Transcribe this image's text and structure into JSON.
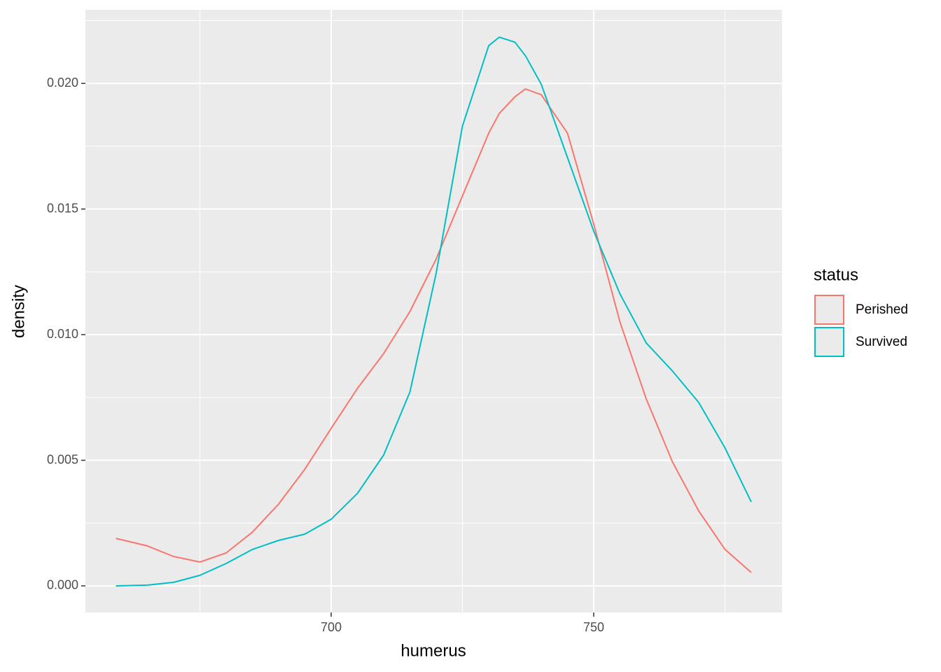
{
  "chart_data": {
    "type": "line",
    "x_label": "humerus",
    "y_label": "density",
    "x": [
      659,
      665,
      670,
      675,
      680,
      685,
      690,
      695,
      700,
      705,
      710,
      715,
      720,
      725,
      730,
      732,
      735,
      737,
      740,
      745,
      750,
      755,
      760,
      765,
      770,
      775,
      780
    ],
    "series": [
      {
        "name": "Perished",
        "color": "#f8766d",
        "values": [
          0.00189,
          0.00159,
          0.00117,
          0.00095,
          0.00131,
          0.00214,
          0.00326,
          0.00465,
          0.00627,
          0.00786,
          0.00925,
          0.01092,
          0.01301,
          0.01552,
          0.01802,
          0.0188,
          0.01947,
          0.01978,
          0.01955,
          0.01802,
          0.0144,
          0.0105,
          0.00744,
          0.00493,
          0.00298,
          0.00145,
          0.00053
        ]
      },
      {
        "name": "Survived",
        "color": "#00bfc4",
        "values": [
          0,
          3e-05,
          0.00014,
          0.00042,
          0.00089,
          0.00145,
          0.00181,
          0.00206,
          0.00265,
          0.00368,
          0.00521,
          0.00772,
          0.01245,
          0.0183,
          0.0215,
          0.02184,
          0.02164,
          0.0211,
          0.01997,
          0.01705,
          0.01412,
          0.01162,
          0.00967,
          0.00855,
          0.0073,
          0.00549,
          0.00334
        ]
      }
    ],
    "legend_title": "status",
    "legend_position": "right",
    "xlim": [
      653.2,
      785.87
    ],
    "ylim": [
      -0.00106,
      0.02293
    ],
    "xticks": [
      700,
      750
    ],
    "yticks": [
      {
        "value": 0,
        "label": "0.000"
      },
      {
        "value": 0.005,
        "label": "0.005"
      },
      {
        "value": 0.01,
        "label": "0.010"
      },
      {
        "value": 0.015,
        "label": "0.015"
      },
      {
        "value": 0.02,
        "label": "0.020"
      }
    ],
    "minor_xticks": [
      675,
      725,
      775
    ],
    "minor_yticks": [
      0.0025,
      0.0075,
      0.0125,
      0.0175,
      0.0225
    ],
    "grid": true
  }
}
